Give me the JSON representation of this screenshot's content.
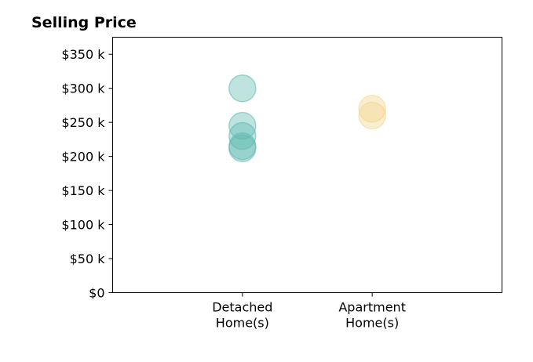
{
  "chart_data": {
    "type": "scatter",
    "title": "Selling Price",
    "xlabel": "",
    "ylabel": "",
    "categories": [
      [
        "Detached",
        "Home(s)"
      ],
      [
        "Apartment",
        "Home(s)"
      ]
    ],
    "ylim": [
      0,
      375000
    ],
    "xlim": [
      0,
      3
    ],
    "yticks": [
      0,
      50000,
      100000,
      150000,
      200000,
      250000,
      300000,
      350000
    ],
    "ytick_labels": [
      "$0",
      "$50 k",
      "$100 k",
      "$150 k",
      "$200 k",
      "$250 k",
      "$300 k",
      "$350 k"
    ],
    "grid": false,
    "series": [
      {
        "category_index": 0,
        "color": "#5fb8ae",
        "values": [
          300000,
          245000,
          230000,
          215000,
          212000
        ]
      },
      {
        "category_index": 1,
        "color": "#f2d58a",
        "values": [
          270000,
          260000
        ]
      }
    ]
  }
}
